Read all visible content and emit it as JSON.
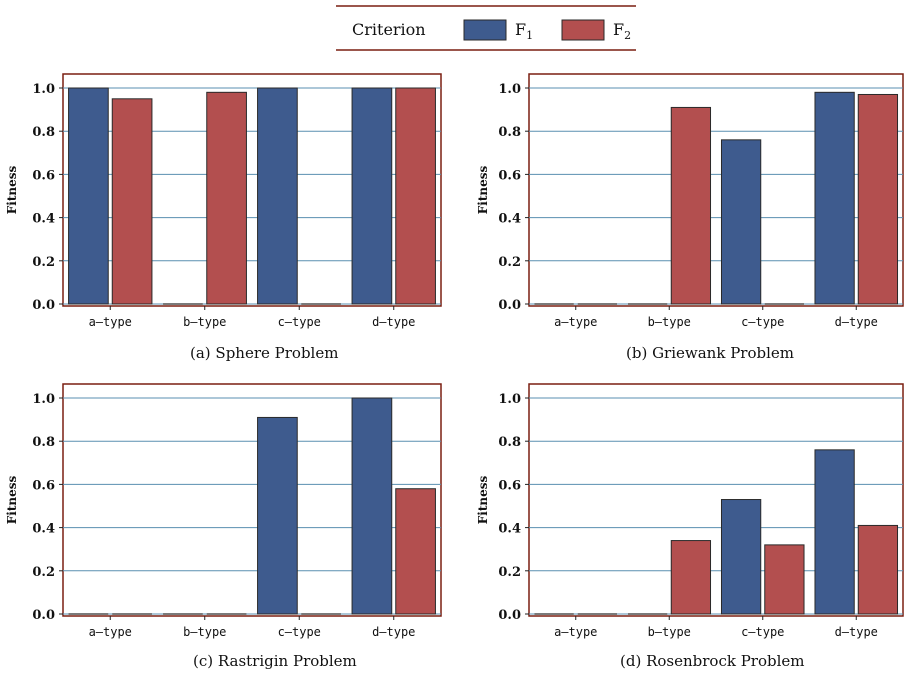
{
  "legend": {
    "title": "Criterion",
    "items": [
      {
        "label": "F",
        "sub": "1",
        "color": "#3e5b8e"
      },
      {
        "label": "F",
        "sub": "2",
        "color": "#b34f4f"
      }
    ]
  },
  "colors": {
    "F1": "#3e5b8e",
    "F2": "#b34f4f",
    "grid": "#5a8fb0",
    "axis_frame": "#7a1f10",
    "bar_edge": "#2a2a2a"
  },
  "chart_data": [
    {
      "type": "bar",
      "caption": "(a)  Sphere Problem",
      "ylabel": "Fitness",
      "categories": [
        "a–type",
        "b–type",
        "c–type",
        "d–type"
      ],
      "series": [
        {
          "name": "F1",
          "values": [
            1.0,
            0.0,
            1.0,
            1.0
          ]
        },
        {
          "name": "F2",
          "values": [
            0.95,
            0.98,
            0.0,
            1.0
          ]
        }
      ],
      "ylim": [
        0,
        1.05
      ],
      "yticks": [
        "0.0",
        "0.2",
        "0.4",
        "0.6",
        "0.8",
        "1.0"
      ],
      "grid": true
    },
    {
      "type": "bar",
      "caption": "(b)  Griewank Problem",
      "ylabel": "Fitness",
      "categories": [
        "a–type",
        "b–type",
        "c–type",
        "d–type"
      ],
      "series": [
        {
          "name": "F1",
          "values": [
            0.0,
            0.0,
            0.76,
            0.98
          ]
        },
        {
          "name": "F2",
          "values": [
            0.0,
            0.91,
            0.0,
            0.97
          ]
        }
      ],
      "ylim": [
        0,
        1.05
      ],
      "yticks": [
        "0.0",
        "0.2",
        "0.4",
        "0.6",
        "0.8",
        "1.0"
      ],
      "grid": true
    },
    {
      "type": "bar",
      "caption": "(c)  Rastrigin Problem",
      "ylabel": "Fitness",
      "categories": [
        "a–type",
        "b–type",
        "c–type",
        "d–type"
      ],
      "series": [
        {
          "name": "F1",
          "values": [
            0.0,
            0.0,
            0.91,
            1.0
          ]
        },
        {
          "name": "F2",
          "values": [
            0.0,
            0.0,
            0.0,
            0.58
          ]
        }
      ],
      "ylim": [
        0,
        1.05
      ],
      "yticks": [
        "0.0",
        "0.2",
        "0.4",
        "0.6",
        "0.8",
        "1.0"
      ],
      "grid": true
    },
    {
      "type": "bar",
      "caption": "(d)  Rosenbrock Problem",
      "ylabel": "Fitness",
      "categories": [
        "a–type",
        "b–type",
        "c–type",
        "d–type"
      ],
      "series": [
        {
          "name": "F1",
          "values": [
            0.0,
            0.0,
            0.53,
            0.76
          ]
        },
        {
          "name": "F2",
          "values": [
            0.0,
            0.34,
            0.32,
            0.41
          ]
        }
      ],
      "ylim": [
        0,
        1.05
      ],
      "yticks": [
        "0.0",
        "0.2",
        "0.4",
        "0.6",
        "0.8",
        "1.0"
      ],
      "grid": true
    }
  ]
}
